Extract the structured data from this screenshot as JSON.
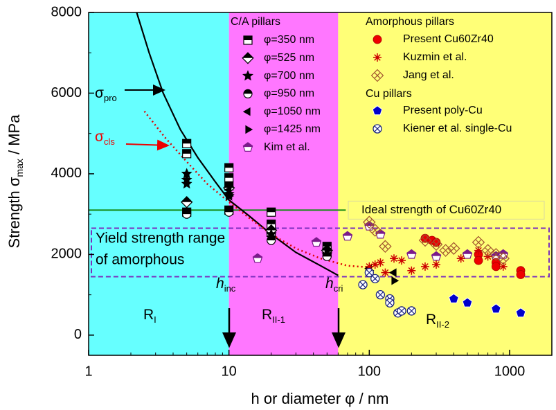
{
  "chart_data": {
    "type": "scatter",
    "xlabel": "h or diameter φ / nm",
    "ylabel": [
      "Strength σ",
      "max",
      " / MPa"
    ],
    "xscale": "log",
    "xlim": [
      1,
      2000
    ],
    "ylim": [
      -500,
      8000
    ],
    "xticks": [
      1,
      10,
      100,
      1000
    ],
    "yticks": [
      0,
      2000,
      4000,
      6000,
      8000
    ],
    "regions": [
      {
        "xrange": [
          1,
          10
        ],
        "color": "#66ffff"
      },
      {
        "xrange": [
          10,
          60
        ],
        "color": "#ff77ff"
      },
      {
        "xrange": [
          60,
          2000
        ],
        "color": "#ffff77"
      }
    ],
    "band": {
      "range": [
        1450,
        2650
      ],
      "color": "#7b2fbe",
      "label": [
        "Yield strength range",
        "of amorphous"
      ]
    },
    "reference_line": {
      "value": 3100,
      "xrange": [
        1,
        68
      ],
      "color": "#138a13",
      "label": "Ideal strength of Cu60Zr40"
    },
    "curves": [
      {
        "color": "#000000",
        "style": "solid",
        "x": [
          2.2,
          2.7,
          3.4,
          4.5,
          6,
          8,
          10,
          14,
          20,
          30,
          45,
          60
        ],
        "values": [
          8000,
          7000,
          6000,
          5100,
          4400,
          3800,
          3350,
          2950,
          2500,
          2050,
          1720,
          1480
        ]
      },
      {
        "color": "#dd0000",
        "style": "dotted",
        "x": [
          2.5,
          3.5,
          5,
          7,
          10,
          14,
          20,
          30,
          45,
          70,
          100
        ],
        "values": [
          5550,
          4900,
          4300,
          3750,
          3300,
          2900,
          2500,
          2150,
          1900,
          1720,
          1680
        ]
      }
    ],
    "legend_groups": [
      "C/A pillars",
      "Amorphous pillars",
      "Cu pillars"
    ],
    "series": [
      {
        "name": "φ=350 nm",
        "group": 0,
        "marker": "square-half",
        "color": "#000000",
        "x": [
          5,
          5,
          5,
          10,
          10,
          10,
          10,
          20,
          20,
          20,
          50,
          50
        ],
        "values": [
          4750,
          4500,
          3050,
          4150,
          3900,
          3700,
          3100,
          3050,
          2750,
          2550,
          2200,
          2050
        ]
      },
      {
        "name": "φ=525 nm",
        "group": 0,
        "marker": "diamond-half",
        "color": "#000000",
        "x": [
          5,
          10,
          20,
          50
        ],
        "values": [
          3300,
          3650,
          2600,
          2100
        ]
      },
      {
        "name": "φ=700 nm",
        "group": 0,
        "marker": "star",
        "color": "#000000",
        "x": [
          5,
          5,
          5,
          10,
          10,
          20,
          50
        ],
        "values": [
          4000,
          3850,
          3750,
          3500,
          3450,
          2500,
          2000
        ]
      },
      {
        "name": "φ=950 nm",
        "group": 0,
        "marker": "circle-half",
        "color": "#000000",
        "x": [
          5,
          5,
          10,
          20,
          50
        ],
        "values": [
          3050,
          3000,
          3050,
          2350,
          1950
        ]
      },
      {
        "name": "φ=1050 nm",
        "group": 0,
        "marker": "tri-left",
        "color": "#000000",
        "x": [
          10,
          20,
          50,
          100,
          150
        ],
        "values": [
          3600,
          2450,
          2150,
          1650,
          1550
        ]
      },
      {
        "name": "φ=1425 nm",
        "group": 0,
        "marker": "tri-right",
        "color": "#000000",
        "x": [
          10,
          20,
          50,
          100,
          150
        ],
        "values": [
          3450,
          2450,
          2100,
          1600,
          1350
        ]
      },
      {
        "name": "Kim et al.",
        "group": 0,
        "marker": "pentagon-half",
        "color": "#7a1a8a",
        "x": [
          16,
          42,
          70,
          100,
          120,
          200,
          300,
          500,
          800,
          900
        ],
        "values": [
          1900,
          2300,
          2450,
          2700,
          2500,
          2000,
          1950,
          2000,
          1950,
          2000
        ]
      },
      {
        "name": "Present Cu60Zr40",
        "group": 1,
        "marker": "circle",
        "color": "#ee0000",
        "x": [
          250,
          280,
          300,
          600,
          600,
          800,
          800,
          1200,
          1200
        ],
        "values": [
          2400,
          2350,
          2300,
          2000,
          1850,
          1800,
          1700,
          1600,
          1500
        ]
      },
      {
        "name": "Kuzmin et al.",
        "group": 1,
        "marker": "asterisk",
        "color": "#cc0000",
        "x": [
          100,
          110,
          120,
          130,
          150,
          170,
          200,
          250,
          300,
          450,
          600,
          700,
          900
        ],
        "values": [
          1700,
          1750,
          1800,
          1550,
          1900,
          1850,
          1600,
          1700,
          1750,
          1900,
          2100,
          1950,
          1700
        ]
      },
      {
        "name": "Jang et al.",
        "group": 1,
        "marker": "crossed-diamond",
        "color": "#a0522d",
        "x": [
          100,
          110,
          130,
          250,
          300,
          350,
          400,
          600,
          700,
          800,
          900
        ],
        "values": [
          2800,
          2600,
          2200,
          2350,
          2250,
          2100,
          2150,
          2300,
          2100,
          2000,
          1900
        ]
      },
      {
        "name": "Present poly-Cu",
        "group": 2,
        "marker": "pentagon",
        "color": "#0000cc",
        "x": [
          400,
          500,
          800,
          1200
        ],
        "values": [
          900,
          800,
          650,
          550
        ]
      },
      {
        "name": "Kiener et al. single-Cu",
        "group": 2,
        "marker": "crossed-circle",
        "color": "#1a237e",
        "x": [
          90,
          100,
          110,
          120,
          140,
          140,
          160,
          170,
          200
        ],
        "values": [
          1250,
          1550,
          1400,
          1000,
          900,
          800,
          550,
          600,
          600
        ]
      }
    ],
    "annotations": [
      {
        "text": "σ",
        "sub": "pro"
      },
      {
        "text": "σ",
        "sub": "cls"
      },
      {
        "text": "h",
        "sub": "inc"
      },
      {
        "text": "h",
        "sub": "cri"
      },
      {
        "text": "R",
        "sub": "I"
      },
      {
        "text": "R",
        "sub": "II-1"
      },
      {
        "text": "R",
        "sub": "II-2"
      }
    ]
  }
}
